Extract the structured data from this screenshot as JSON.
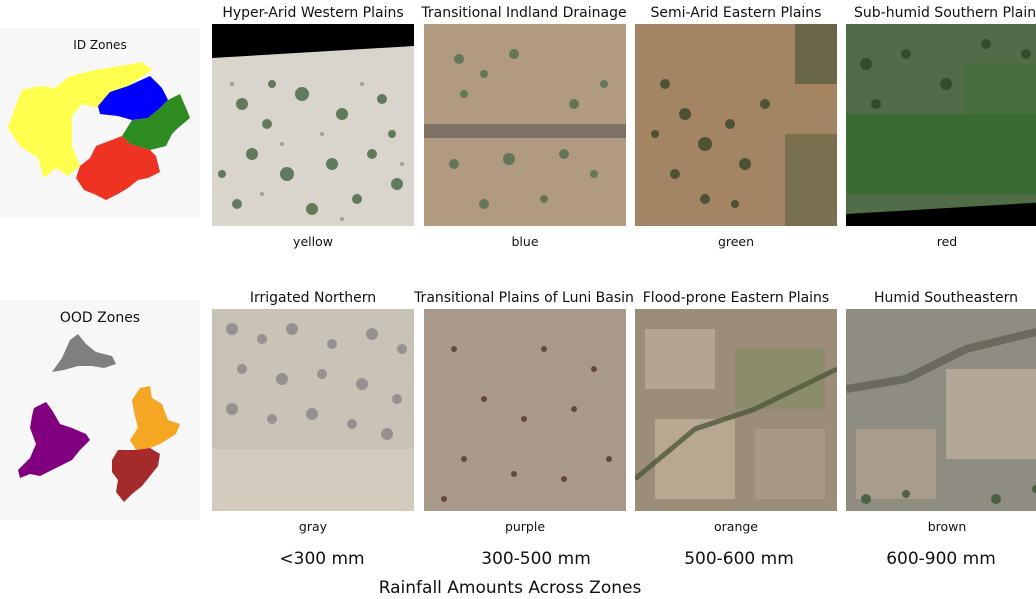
{
  "id_panel": {
    "title": "ID Zones"
  },
  "ood_panel": {
    "title": "OOD Zones"
  },
  "id_zones": [
    {
      "title": "Hyper-Arid Western Plains",
      "color_name": "yellow",
      "color": "#ffff4d"
    },
    {
      "title": "Transitional Indland Drainage",
      "color_name": "blue",
      "color": "#0000ff"
    },
    {
      "title": "Semi-Arid Eastern Plains",
      "color_name": "green",
      "color": "#2e8b22"
    },
    {
      "title": "Sub-humid Southern Plains",
      "color_name": "red",
      "color": "#ee3322"
    }
  ],
  "ood_zones": [
    {
      "title": "Irrigated Northern",
      "color_name": "gray",
      "color": "#7f7f7f"
    },
    {
      "title": "Transitional Plains of Luni Basin",
      "color_name": "purple",
      "color": "#800080"
    },
    {
      "title": "Flood-prone Eastern Plains",
      "color_name": "orange",
      "color": "#f5a623"
    },
    {
      "title": "Humid Southeastern",
      "color_name": "brown",
      "color": "#a52a2a"
    }
  ],
  "rainfall": [
    "<300 mm",
    "300-500 mm",
    "500-600 mm",
    "600-900 mm"
  ],
  "footer": "Rainfall Amounts Across Zones"
}
